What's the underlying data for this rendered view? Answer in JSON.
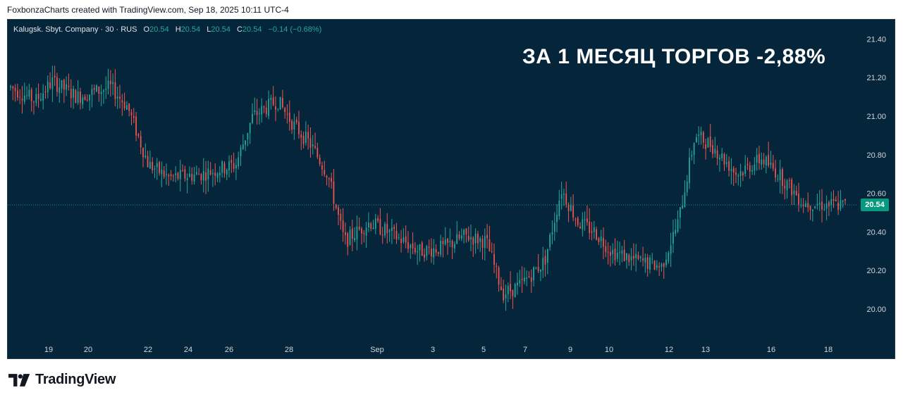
{
  "header": {
    "attribution": "FoxbonzaCharts created with TradingView.com, Sep 18, 2025 10:11 UTC-4"
  },
  "legend": {
    "symbol": "Kalugsk. Sbyt. Company · 30 · RUS",
    "open_label": "O",
    "open": "20.54",
    "high_label": "H",
    "high": "20.54",
    "low_label": "L",
    "low": "20.54",
    "close_label": "C",
    "close": "20.54",
    "change": "−0.14 (−0.68%)"
  },
  "headline": "ЗА 1 МЕСЯЦ ТОРГОВ -2,88%",
  "last_price_badge": "20.54",
  "footer": {
    "brand": "TradingView"
  },
  "colors": {
    "background": "#05263a",
    "up": "#26a69a",
    "down": "#ef5350",
    "text": "#e0e3eb",
    "badge": "#089981"
  },
  "chart_data": {
    "type": "candlestick",
    "symbol": "Kalugsk. Sbyt. Company",
    "timeframe": "30",
    "last_price": 20.54,
    "ylim": [
      19.85,
      21.5
    ],
    "y_ticks": [
      "21.40",
      "21.20",
      "21.00",
      "20.80",
      "20.60",
      "20.40",
      "20.20",
      "20.00"
    ],
    "x_ticks": [
      "19",
      "20",
      "22",
      "24",
      "26",
      "28",
      "Sep",
      "3",
      "5",
      "7",
      "9",
      "10",
      "12",
      "13",
      "16",
      "18"
    ],
    "path_estimate": [
      [
        0,
        21.15
      ],
      [
        0.03,
        21.08
      ],
      [
        0.05,
        21.18
      ],
      [
        0.08,
        21.1
      ],
      [
        0.12,
        21.15
      ],
      [
        0.14,
        21.05
      ],
      [
        0.165,
        20.75
      ],
      [
        0.19,
        20.68
      ],
      [
        0.23,
        20.7
      ],
      [
        0.27,
        20.75
      ],
      [
        0.29,
        21.0
      ],
      [
        0.32,
        21.08
      ],
      [
        0.34,
        20.95
      ],
      [
        0.36,
        20.85
      ],
      [
        0.38,
        20.7
      ],
      [
        0.4,
        20.35
      ],
      [
        0.43,
        20.45
      ],
      [
        0.46,
        20.38
      ],
      [
        0.49,
        20.3
      ],
      [
        0.52,
        20.32
      ],
      [
        0.545,
        20.38
      ],
      [
        0.57,
        20.35
      ],
      [
        0.59,
        20.08
      ],
      [
        0.61,
        20.12
      ],
      [
        0.64,
        20.25
      ],
      [
        0.66,
        20.62
      ],
      [
        0.68,
        20.45
      ],
      [
        0.7,
        20.4
      ],
      [
        0.72,
        20.3
      ],
      [
        0.75,
        20.25
      ],
      [
        0.78,
        20.22
      ],
      [
        0.8,
        20.45
      ],
      [
        0.82,
        20.9
      ],
      [
        0.84,
        20.85
      ],
      [
        0.87,
        20.7
      ],
      [
        0.9,
        20.78
      ],
      [
        0.92,
        20.7
      ],
      [
        0.95,
        20.55
      ],
      [
        0.98,
        20.54
      ],
      [
        1.0,
        20.54
      ]
    ]
  }
}
